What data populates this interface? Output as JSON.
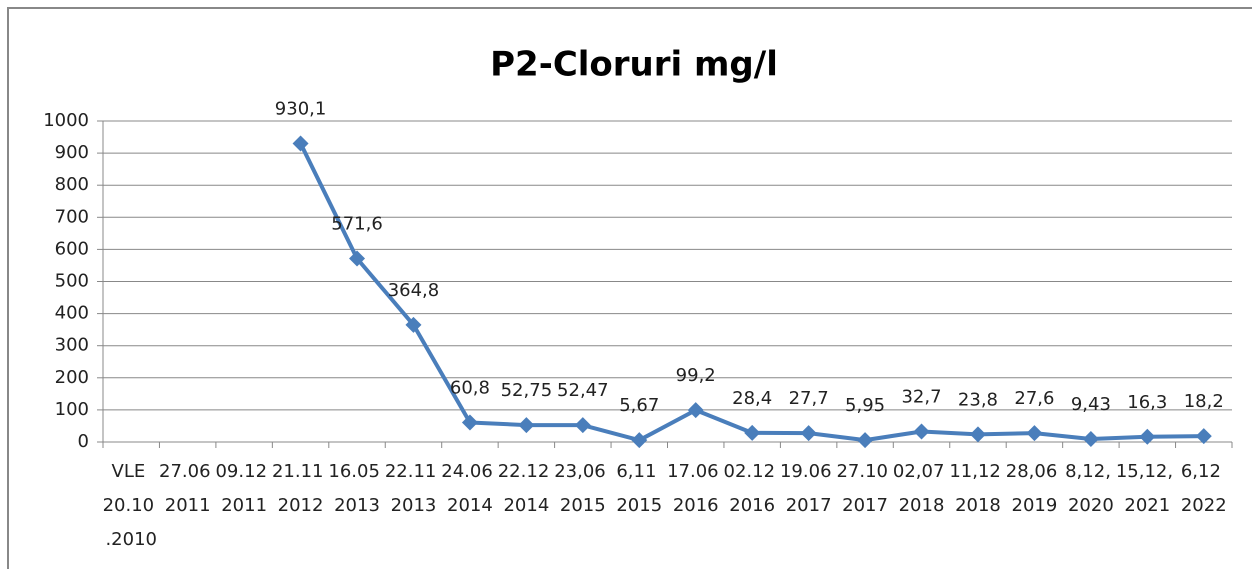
{
  "chart_data": {
    "type": "line",
    "title": "P2-Cloruri mg/l",
    "categories": [
      "VLE 20.10 .2010",
      "27.06 2011",
      "09.12 2011",
      "21.11 2012",
      "16.05 2013",
      "22.11 2013",
      "24.06 2014",
      "22.12 2014",
      "23,06 2015",
      "6,11 2015",
      "17.06 2016",
      "02.12 2016",
      "19.06 2017",
      "27.10 2017",
      "02,07 2018",
      "11,12 2018",
      "28,06 2019",
      "8,12, 2020",
      "15,12, 2021",
      "6,12 2022"
    ],
    "values": [
      null,
      null,
      null,
      930.1,
      571.6,
      364.8,
      60.8,
      52.75,
      52.47,
      5.67,
      99.2,
      28.4,
      27.7,
      5.95,
      32.7,
      23.8,
      27.6,
      9.43,
      16.3,
      18.2
    ],
    "value_labels": [
      null,
      null,
      null,
      "930,1",
      "571,6",
      "364,8",
      "60,8",
      "52,75",
      "52,47",
      "5,67",
      "99,2",
      "28,4",
      "27,7",
      "5,95",
      "32,7",
      "23,8",
      "27,6",
      "9,43",
      "16,3",
      "18,2"
    ],
    "color": "#4a7ebb",
    "ylim": [
      0,
      1000
    ],
    "yticks": [
      0,
      100,
      200,
      300,
      400,
      500,
      600,
      700,
      800,
      900,
      1000
    ],
    "grid": true
  }
}
